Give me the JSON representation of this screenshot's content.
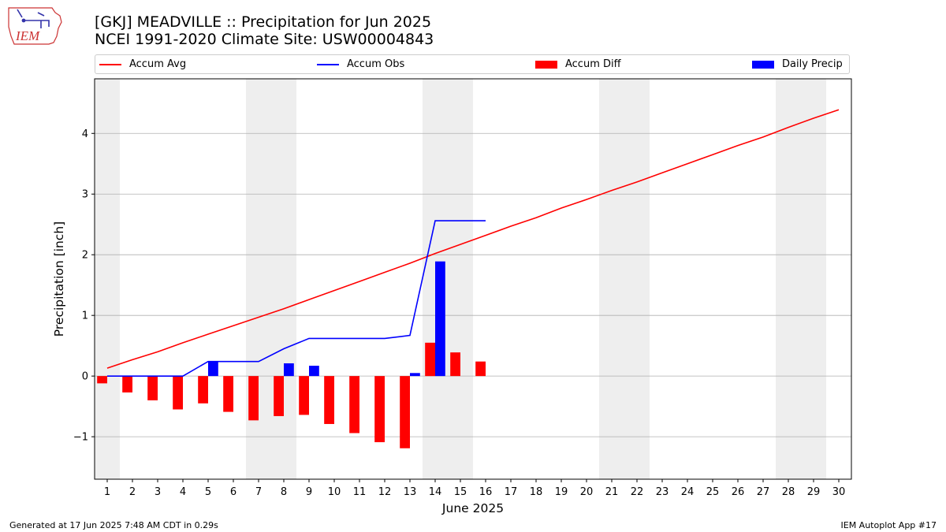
{
  "logo": {
    "text": "IEM"
  },
  "title_line1": "[GKJ] MEADVILLE :: Precipitation for Jun 2025",
  "title_line2": "NCEI 1991-2020 Climate Site: USW00004843",
  "legend": {
    "accum_avg": "Accum Avg",
    "accum_obs": "Accum Obs",
    "accum_diff": "Accum Diff",
    "daily_precip": "Daily Precip"
  },
  "colors": {
    "accum_avg": "#ff0000",
    "accum_obs": "#0000ff",
    "accum_diff": "#ff0000",
    "daily_precip": "#0000ff",
    "weekend_shade": "#eeeeee",
    "grid": "#b0b0b0"
  },
  "footer": {
    "generated": "Generated at 17 Jun 2025 7:48 AM CDT in 0.29s",
    "app": "IEM Autoplot App #17"
  },
  "chart_data": {
    "type": "bar",
    "xlabel": "June 2025",
    "ylabel": "Precipitation [inch]",
    "ylim": [
      -1.7,
      4.9
    ],
    "xlim": [
      0.5,
      30.5
    ],
    "yticks": [
      -1,
      0,
      1,
      2,
      3,
      4
    ],
    "ytick_labels": [
      "−1",
      "0",
      "1",
      "2",
      "3",
      "4"
    ],
    "days": [
      1,
      2,
      3,
      4,
      5,
      6,
      7,
      8,
      9,
      10,
      11,
      12,
      13,
      14,
      15,
      16,
      17,
      18,
      19,
      20,
      21,
      22,
      23,
      24,
      25,
      26,
      27,
      28,
      29,
      30
    ],
    "weekend_days": [
      1,
      7,
      8,
      14,
      15,
      21,
      22,
      28,
      29
    ],
    "grid": "horizontal",
    "legend_position": "top",
    "series": [
      {
        "name": "Accum Avg",
        "kind": "line",
        "values": [
          0.13,
          0.27,
          0.4,
          0.55,
          0.69,
          0.83,
          0.97,
          1.11,
          1.26,
          1.41,
          1.56,
          1.71,
          1.86,
          2.02,
          2.17,
          2.32,
          2.47,
          2.61,
          2.77,
          2.91,
          3.06,
          3.2,
          3.35,
          3.5,
          3.65,
          3.8,
          3.94,
          4.1,
          4.25,
          4.39
        ]
      },
      {
        "name": "Accum Obs",
        "kind": "line",
        "values": [
          0.0,
          0.0,
          0.0,
          0.0,
          0.24,
          0.24,
          0.24,
          0.45,
          0.62,
          0.62,
          0.62,
          0.62,
          0.67,
          2.56,
          2.56,
          2.56
        ]
      },
      {
        "name": "Accum Diff",
        "kind": "bar",
        "values": [
          -0.12,
          -0.27,
          -0.4,
          -0.55,
          -0.45,
          -0.59,
          -0.73,
          -0.66,
          -0.64,
          -0.79,
          -0.94,
          -1.09,
          -1.19,
          0.55,
          0.39,
          0.24
        ]
      },
      {
        "name": "Daily Precip",
        "kind": "bar",
        "values": [
          0,
          0,
          0,
          0,
          0.24,
          0,
          0,
          0.21,
          0.17,
          0,
          0,
          0,
          0.05,
          1.89,
          0,
          0
        ]
      }
    ]
  }
}
